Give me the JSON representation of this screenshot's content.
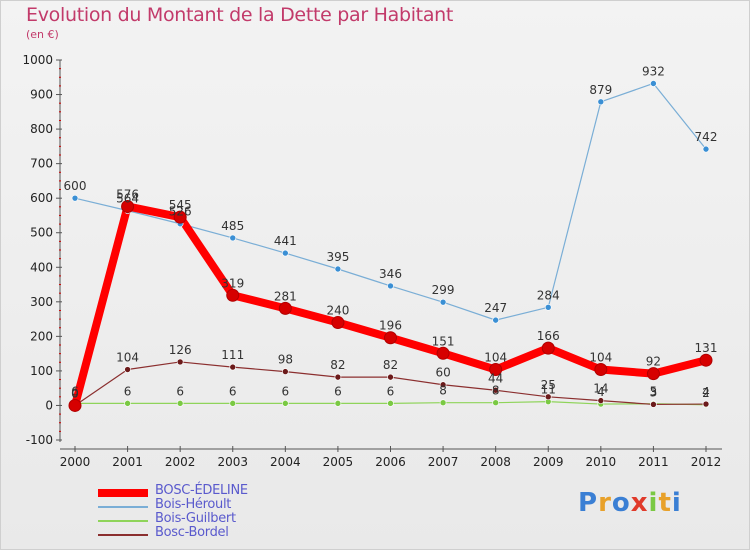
{
  "title": "Evolution du Montant de la Dette par Habitant",
  "subtitle": "(en €)",
  "logo": "Proxiti",
  "colors": {
    "title": "#c23a6a",
    "axis": "#555555",
    "grid_tick": "#cc0000",
    "legend_text": "#5a5acd"
  },
  "chart_data": {
    "type": "line",
    "title": "Evolution du Montant de la Dette par Habitant",
    "subtitle": "(en €)",
    "x": [
      "2000",
      "2001",
      "2002",
      "2003",
      "2004",
      "2005",
      "2006",
      "2007",
      "2008",
      "2009",
      "2010",
      "2011",
      "2012"
    ],
    "ylim": [
      -100,
      1000
    ],
    "yticks": [
      -100,
      0,
      100,
      200,
      300,
      400,
      500,
      600,
      700,
      800,
      900,
      1000
    ],
    "ytick_labels": [
      "-100",
      "0",
      "100",
      "200",
      "300",
      "400",
      "500",
      "600",
      "700",
      "800",
      "900",
      "1000"
    ],
    "grid": false,
    "legend_position": "bottom-left",
    "series": [
      {
        "name": "BOSC-ÉDELINE",
        "color": "#ff0000",
        "marker_color": "#d60000",
        "width": 8,
        "values": [
          0,
          576,
          545,
          319,
          281,
          240,
          196,
          151,
          104,
          166,
          104,
          92,
          131
        ],
        "labels": [
          "0",
          "576",
          "545",
          "319",
          "281",
          "240",
          "196",
          "151",
          "104",
          "166",
          "104",
          "92",
          "131"
        ]
      },
      {
        "name": "Bois-Héroult",
        "color": "#7aaed6",
        "marker_color": "#3a8fd4",
        "width": 1.2,
        "values": [
          600,
          564,
          526,
          485,
          441,
          395,
          346,
          299,
          247,
          284,
          879,
          932,
          742
        ],
        "labels": [
          "600",
          "564",
          "526",
          "485",
          "441",
          "395",
          "346",
          "299",
          "247",
          "284",
          "879",
          "932",
          "742"
        ]
      },
      {
        "name": "Bois-Guilbert",
        "color": "#8fd45a",
        "marker_color": "#7ac943",
        "width": 1.2,
        "values": [
          6,
          6,
          6,
          6,
          6,
          6,
          6,
          8,
          8,
          11,
          4,
          5,
          2
        ],
        "labels": [
          "6",
          "6",
          "6",
          "6",
          "6",
          "6",
          "6",
          "8",
          "8",
          "11",
          "4",
          "5",
          "2"
        ]
      },
      {
        "name": "Bosc-Bordel",
        "color": "#8b2f2f",
        "marker_color": "#6b1a1a",
        "width": 1.2,
        "values": [
          0,
          104,
          126,
          111,
          98,
          82,
          82,
          60,
          44,
          25,
          14,
          3,
          4
        ],
        "labels": [
          "0",
          "104",
          "126",
          "111",
          "98",
          "82",
          "82",
          "60",
          "44",
          "25",
          "14",
          "3",
          "4"
        ]
      }
    ]
  }
}
